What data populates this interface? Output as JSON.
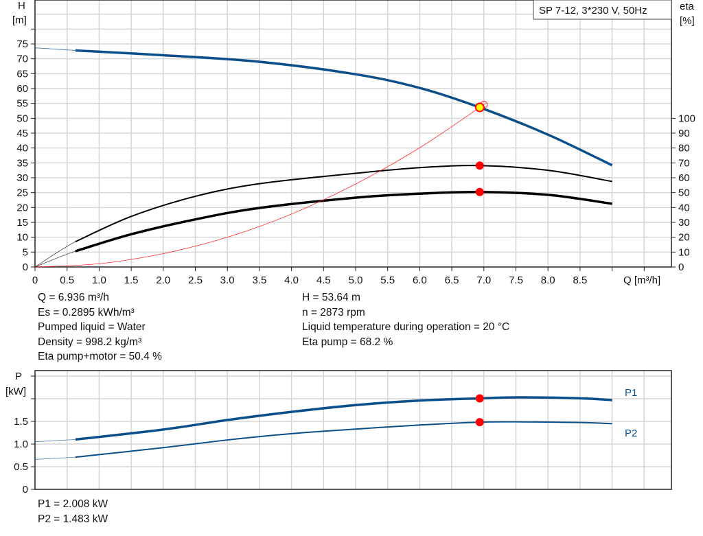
{
  "title_box": "SP 7-12, 3*230 V, 50Hz",
  "colors": {
    "head": "#0b4f8a",
    "eta": "#000000",
    "system": "#ff2a2a",
    "power": "#0b4f8a",
    "grid": "#d6d6d6",
    "duty_point": "#ff0000",
    "duty_head_fill": "#ffff00"
  },
  "chart_data": [
    {
      "type": "line",
      "xlabel": "Q [m³/h]",
      "ylabel": "H\n[m]",
      "ylabel_lines": [
        "H",
        "[m]"
      ],
      "y2label_lines": [
        "eta",
        "[%]"
      ],
      "xlim": [
        0,
        9.9
      ],
      "ylim": [
        0,
        90
      ],
      "y2lim": [
        0,
        180
      ],
      "xticks": [
        0,
        0.5,
        1,
        1.5,
        2,
        2.5,
        3,
        3.5,
        4,
        4.5,
        5,
        5.5,
        6,
        6.5,
        7,
        7.5,
        8,
        8.5,
        9,
        9.5
      ],
      "xtick_labels": [
        "0",
        "0.5",
        "1.0",
        "1.5",
        "2.0",
        "2.5",
        "3.0",
        "3.5",
        "4.0",
        "4.5",
        "5.0",
        "5.5",
        "6.0",
        "6.5",
        "7.0",
        "7.5",
        "8.0",
        "8.5",
        "",
        ""
      ],
      "yticks": [
        0,
        5,
        10,
        15,
        20,
        25,
        30,
        35,
        40,
        45,
        50,
        55,
        60,
        65,
        70,
        75,
        80
      ],
      "ytick_labels": [
        "0",
        "5",
        "10",
        "15",
        "20",
        "25",
        "30",
        "35",
        "40",
        "45",
        "50",
        "55",
        "60",
        "65",
        "70",
        "75",
        ""
      ],
      "y2ticks": [
        0,
        10,
        20,
        30,
        40,
        50,
        60,
        70,
        80,
        90,
        100
      ],
      "y2tick_labels": [
        "0",
        "10",
        "20",
        "30",
        "40",
        "50",
        "60",
        "70",
        "80",
        "90",
        "100"
      ],
      "grid": true,
      "series": [
        {
          "key": "head",
          "axis": "left",
          "x": [
            0,
            0.63,
            2,
            3.5,
            5,
            6,
            6.936,
            8,
            9
          ],
          "y": [
            73.7,
            72.8,
            71.2,
            69,
            64.8,
            60.2,
            53.64,
            44.5,
            34.2
          ]
        },
        {
          "key": "eta_pump",
          "axis": "right",
          "x": [
            0,
            0.63,
            1.5,
            2.5,
            3.5,
            5,
            6,
            6.936,
            8,
            9
          ],
          "y": [
            0,
            17,
            34,
            47.5,
            56,
            63,
            66.8,
            68.2,
            65,
            57.5
          ]
        },
        {
          "key": "eta_pump_motor",
          "axis": "right",
          "x": [
            0,
            0.63,
            1.5,
            2.5,
            3.5,
            5,
            6,
            6.936,
            8,
            9
          ],
          "y": [
            0,
            10.6,
            22,
            32,
            39.7,
            46.6,
            49.3,
            50.4,
            48.5,
            42.5
          ]
        },
        {
          "key": "system",
          "axis": "left",
          "x": [
            0,
            1,
            2,
            3,
            4,
            5,
            6,
            6.936,
            7.0
          ],
          "y": [
            0,
            1.1,
            4.5,
            10,
            17.8,
            27.9,
            40.1,
            53.64,
            54.6
          ]
        }
      ],
      "duty_point": {
        "q": 6.936,
        "h": 53.64,
        "eta_pump": 68.2,
        "eta_pump_motor": 50.4
      }
    },
    {
      "type": "line",
      "ylabel_lines": [
        "P",
        "[kW]"
      ],
      "xlim": [
        0,
        9.9
      ],
      "ylim": [
        0,
        2.6
      ],
      "yticks": [
        0,
        0.5,
        1,
        1.5,
        2,
        2.5
      ],
      "ytick_labels": [
        "0",
        "0.5",
        "1.0",
        "1.5",
        "",
        ""
      ],
      "grid": true,
      "series": [
        {
          "name": "P1",
          "x": [
            0,
            0.63,
            2,
            3,
            4,
            5,
            6,
            6.936,
            7.5,
            8.5,
            9
          ],
          "y": [
            1.05,
            1.1,
            1.32,
            1.53,
            1.71,
            1.86,
            1.96,
            2.008,
            2.03,
            2.01,
            1.97
          ]
        },
        {
          "name": "P2",
          "x": [
            0,
            0.63,
            2,
            3,
            4,
            5,
            6,
            6.936,
            7.5,
            8.5,
            9
          ],
          "y": [
            0.66,
            0.71,
            0.92,
            1.09,
            1.23,
            1.33,
            1.42,
            1.483,
            1.49,
            1.475,
            1.45
          ]
        }
      ],
      "duty_point": {
        "q": 6.936,
        "p1": 2.008,
        "p2": 1.483
      }
    }
  ],
  "readouts": {
    "left": [
      "Q = 6.936 m³/h",
      "Es = 0.2895 kWh/m³",
      "Pumped liquid = Water",
      "Density = 998.2 kg/m³",
      "Eta pump+motor = 50.4 %"
    ],
    "right": [
      "H = 53.64 m",
      "n = 2873 rpm",
      "Liquid temperature during operation = 20 °C",
      "Eta pump = 68.2 %"
    ],
    "power": [
      "P1 = 2.008 kW",
      "P2 = 1.483 kW"
    ]
  }
}
